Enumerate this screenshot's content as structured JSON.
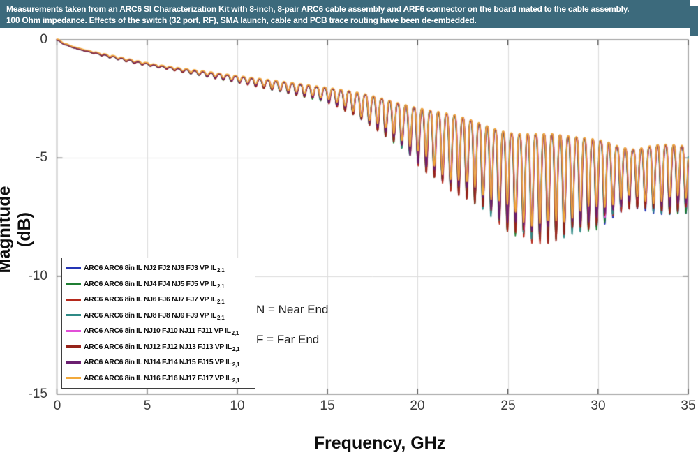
{
  "header": {
    "line1": "Measurements taken from an ARC6 SI Characterization Kit with 8-inch, 8-pair ARC6 cable assembly and ARF6 connector on the board mated to the cable assembly.",
    "line2": "100 Ohm impedance. Effects of the switch (32 port, RF), SMA launch, cable and PCB trace routing have been de-embedded.",
    "background": "#3c6a7c",
    "text_color": "#ffffff"
  },
  "annotations": {
    "near_end": "N = Near End",
    "far_end": "F = Far End"
  },
  "chart_data": {
    "type": "line",
    "title": "",
    "xlabel": "Frequency, GHz",
    "ylabel": "Magnitude (dB)",
    "xlim": [
      0,
      35
    ],
    "ylim": [
      -15,
      0
    ],
    "x_ticks": [
      0,
      5,
      10,
      15,
      20,
      25,
      30,
      35
    ],
    "y_ticks": [
      0,
      -5,
      -10,
      -15
    ],
    "grid": true,
    "legend_position": "inside-bottom-left",
    "style": {
      "grid_color": "#dcdcdc",
      "frame_color": "#7e7e7e",
      "tick_color": "#4a4a4a",
      "line_width": 1.7
    },
    "ripple_model": {
      "comment": "traces = upper_envelope - (upper-lower)*depth*sin_shape^exponent; envelopes sampled every 0.5 GHz",
      "envelope_step_ghz": 0.5,
      "period_ghz": 0.45,
      "dip_exponent": 1.8,
      "depth_clamp": 1.05,
      "variation": [
        {
          "amp": 0.05,
          "period_ghz": 2.3
        },
        {
          "amp": 0.04,
          "period_ghz": 5.17
        }
      ]
    },
    "upper_envelope_db": [
      0,
      -0.2,
      -0.33,
      -0.43,
      -0.52,
      -0.6,
      -0.68,
      -0.76,
      -0.84,
      -0.92,
      -0.99,
      -1.06,
      -1.12,
      -1.18,
      -1.24,
      -1.29,
      -1.34,
      -1.39,
      -1.44,
      -1.49,
      -1.54,
      -1.59,
      -1.64,
      -1.69,
      -1.74,
      -1.79,
      -1.84,
      -1.89,
      -1.94,
      -1.99,
      -2.04,
      -2.1,
      -2.16,
      -2.23,
      -2.31,
      -2.4,
      -2.5,
      -2.6,
      -2.7,
      -2.8,
      -2.9,
      -2.98,
      -3.05,
      -3.12,
      -3.2,
      -3.3,
      -3.42,
      -3.55,
      -3.7,
      -3.85,
      -3.95,
      -4.0,
      -4.0,
      -4.0,
      -4.0,
      -4.0,
      -4.05,
      -4.1,
      -4.15,
      -4.2,
      -4.25,
      -4.35,
      -4.5,
      -4.6,
      -4.65,
      -4.6,
      -4.5,
      -4.45,
      -4.45,
      -4.5,
      -4.5
    ],
    "lower_envelope_db": [
      0,
      -0.21,
      -0.35,
      -0.46,
      -0.56,
      -0.66,
      -0.75,
      -0.84,
      -0.93,
      -1.02,
      -1.08,
      -1.16,
      -1.22,
      -1.29,
      -1.36,
      -1.43,
      -1.5,
      -1.58,
      -1.66,
      -1.73,
      -1.81,
      -1.88,
      -1.96,
      -2.03,
      -2.11,
      -2.19,
      -2.27,
      -2.36,
      -2.45,
      -2.55,
      -2.66,
      -2.8,
      -2.97,
      -3.17,
      -3.4,
      -3.64,
      -3.9,
      -4.2,
      -4.5,
      -4.85,
      -5.2,
      -5.5,
      -5.8,
      -6.05,
      -6.3,
      -6.5,
      -6.7,
      -7.0,
      -7.3,
      -7.6,
      -7.9,
      -8.1,
      -8.3,
      -8.4,
      -8.4,
      -8.35,
      -8.2,
      -8.05,
      -7.95,
      -7.9,
      -7.85,
      -7.6,
      -7.3,
      -7.05,
      -7.0,
      -7.1,
      -7.2,
      -7.25,
      -7.25,
      -7.2,
      -7.2
    ],
    "series": [
      {
        "label_main": "ARC6 ARC6 8in IL NJ2 FJ2 NJ3 FJ3 VP IL",
        "label_sub": "2,1",
        "color": "#2435b5",
        "depth_base": 0.92,
        "depth_boost": 0.3,
        "boost_center_ghz": 32.5,
        "boost_width_ghz": 3.0,
        "phase_rad": 0.0,
        "offset_db": -0.02
      },
      {
        "label_main": "ARC6 ARC6 8in IL NJ4 FJ4 NJ5 FJ5 VP IL",
        "label_sub": "2,1",
        "color": "#1f7e32",
        "depth_base": 1.0,
        "depth_boost": 0.05,
        "boost_center_ghz": 10.0,
        "boost_width_ghz": 6.0,
        "phase_rad": 0.1,
        "offset_db": -0.01
      },
      {
        "label_main": "ARC6 ARC6 8in IL NJ6 FJ6 NJ7 FJ7 VP IL",
        "label_sub": "2,1",
        "color": "#b5291c",
        "depth_base": 1.0,
        "depth_boost": 0.03,
        "boost_center_ghz": 26.0,
        "boost_width_ghz": 5.0,
        "phase_rad": -0.1,
        "offset_db": -0.015
      },
      {
        "label_main": "ARC6 ARC6 8in IL NJ8 FJ8 NJ9 FJ9 VP IL",
        "label_sub": "2,1",
        "color": "#2f8a86",
        "depth_base": 0.96,
        "depth_boost": 0.05,
        "boost_center_ghz": 27.5,
        "boost_width_ghz": 4.0,
        "phase_rad": 0.2,
        "offset_db": 0.0
      },
      {
        "label_main": "ARC6 ARC6 8in IL NJ10 FJ10 NJ11 FJ11 VP IL",
        "label_sub": "2,1",
        "color": "#e24fd8",
        "depth_base": 0.88,
        "depth_boost": 0.04,
        "boost_center_ghz": 33.0,
        "boost_width_ghz": 3.0,
        "phase_rad": -0.2,
        "offset_db": 0.01
      },
      {
        "label_main": "ARC6 ARC6 8in IL NJ12 FJ12 NJ13 FJ13 VP IL",
        "label_sub": "2,1",
        "color": "#96231a",
        "depth_base": 0.98,
        "depth_boost": 0.04,
        "boost_center_ghz": 23.5,
        "boost_width_ghz": 6.0,
        "phase_rad": 0.05,
        "offset_db": -0.005
      },
      {
        "label_main": "ARC6 ARC6 8in IL NJ14 FJ14 NJ15 FJ15 VP IL",
        "label_sub": "2,1",
        "color": "#6b1f70",
        "depth_base": 0.91,
        "depth_boost": 0.03,
        "boost_center_ghz": 20.0,
        "boost_width_ghz": 5.0,
        "phase_rad": -0.05,
        "offset_db": 0.005
      },
      {
        "label_main": "ARC6 ARC6 8in IL NJ16 FJ16 NJ17 FJ17 VP IL",
        "label_sub": "2,1",
        "color": "#f2a93b",
        "depth_base": 0.85,
        "depth_boost": 0.0,
        "boost_center_ghz": 0.0,
        "boost_width_ghz": 1.0,
        "phase_rad": 0.0,
        "offset_db": 0.03
      }
    ]
  }
}
